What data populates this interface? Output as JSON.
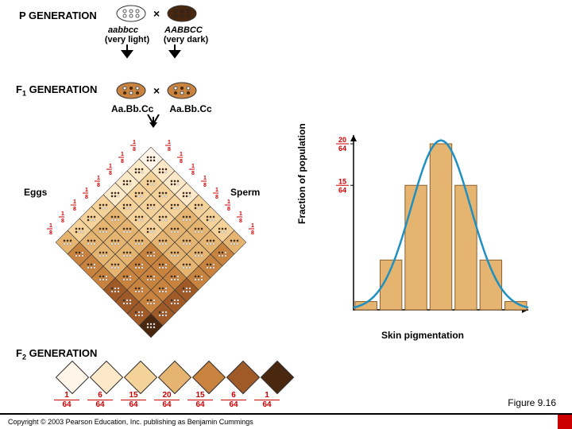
{
  "labels": {
    "p_generation": "P GENERATION",
    "f1_generation": "F₁ GENERATION",
    "f2_generation": "F₂ GENERATION",
    "eggs": "Eggs",
    "sperm": "Sperm",
    "y_axis": "Fraction of population",
    "x_axis": "Skin pigmentation",
    "figure": "Figure 9.16",
    "copyright": "Copyright © 2003 Pearson Education, Inc. publishing as Benjamin Cummings"
  },
  "p_cross": {
    "left_genotype": "aabbcc",
    "left_pheno": "(very light)",
    "right_genotype": "AABBCC",
    "right_pheno": "(very dark)",
    "left_color": "#ffffff",
    "right_color": "#4a2810"
  },
  "f1_cross": {
    "left_genotype": "Aa.Bb.Cc",
    "right_genotype": "Aa.Bb.Cc",
    "color": "#c8833f"
  },
  "gamete_fractions": [
    "1/8",
    "1/8",
    "1/8",
    "1/8",
    "1/8",
    "1/8",
    "1/8",
    "1/8"
  ],
  "skin_colors": [
    "#fff5e8",
    "#fde8c8",
    "#f5d29a",
    "#e5b470",
    "#c8833f",
    "#a05a28",
    "#4a2810"
  ],
  "distribution": {
    "numerators": [
      1,
      6,
      15,
      20,
      15,
      6,
      1
    ],
    "denominator": 64
  },
  "bell": {
    "y_ticks": [
      {
        "n": 20,
        "d": 64
      },
      {
        "n": 15,
        "d": 64
      }
    ],
    "bar_color": "#e5b470",
    "bar_stroke": "#8b6030",
    "curve_color": "#2090c0",
    "axis_color": "#000000",
    "bg": "#ffffff",
    "values": [
      1,
      6,
      15,
      20,
      15,
      6,
      1
    ],
    "max": 20
  }
}
